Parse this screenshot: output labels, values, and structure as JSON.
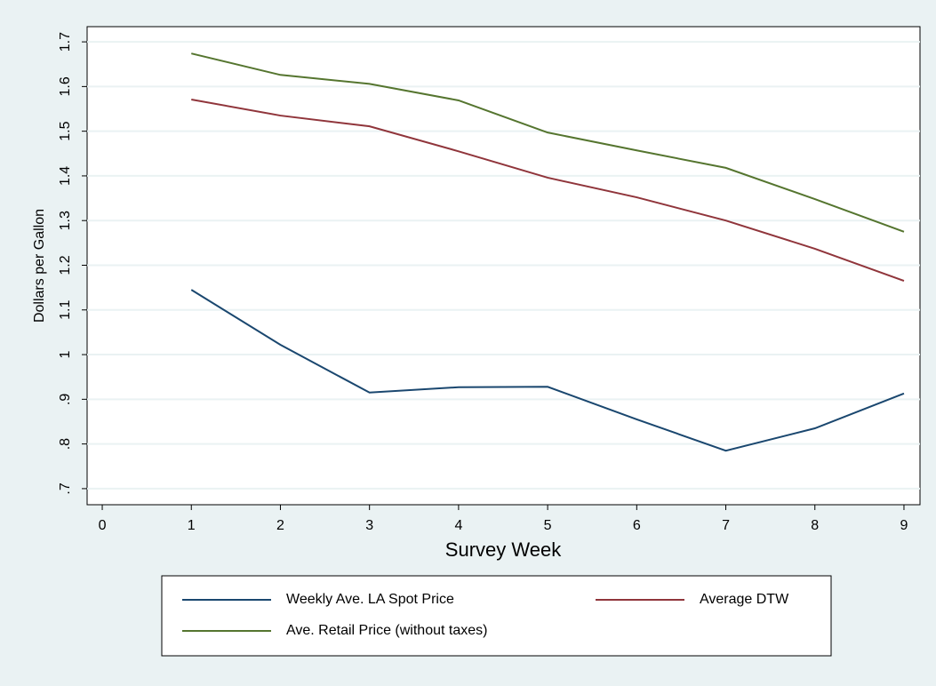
{
  "chart_data": {
    "type": "line",
    "x_label": "Survey Week",
    "y_label": "Dollars per Gallon",
    "x": [
      1,
      2,
      3,
      4,
      5,
      6,
      7,
      8,
      9
    ],
    "series": [
      {
        "name": "Weekly Ave. LA Spot Price",
        "color": "#1a476f",
        "values": [
          1.145,
          1.022,
          0.915,
          0.927,
          0.928,
          0.855,
          0.785,
          0.835,
          0.913
        ]
      },
      {
        "name": "Average DTW",
        "color": "#90353b",
        "values": [
          1.571,
          1.535,
          1.511,
          1.455,
          1.396,
          1.352,
          1.3,
          1.237,
          1.165
        ]
      },
      {
        "name": "Ave. Retail Price (without taxes)",
        "color": "#55752f",
        "values": [
          1.674,
          1.626,
          1.606,
          1.569,
          1.497,
          1.457,
          1.418,
          1.348,
          1.275
        ]
      }
    ],
    "xlim": [
      -0.17,
      9.18
    ],
    "xticks": [
      0,
      1,
      2,
      3,
      4,
      5,
      6,
      7,
      8,
      9
    ],
    "ylim": [
      0.664,
      1.734
    ],
    "yticks": [
      {
        "value": 0.7,
        "label": ".7"
      },
      {
        "value": 0.8,
        "label": ".8"
      },
      {
        "value": 0.9,
        "label": ".9"
      },
      1,
      1.1,
      1.2,
      1.3,
      1.4,
      1.5,
      1.6,
      1.7
    ],
    "grid": true
  }
}
